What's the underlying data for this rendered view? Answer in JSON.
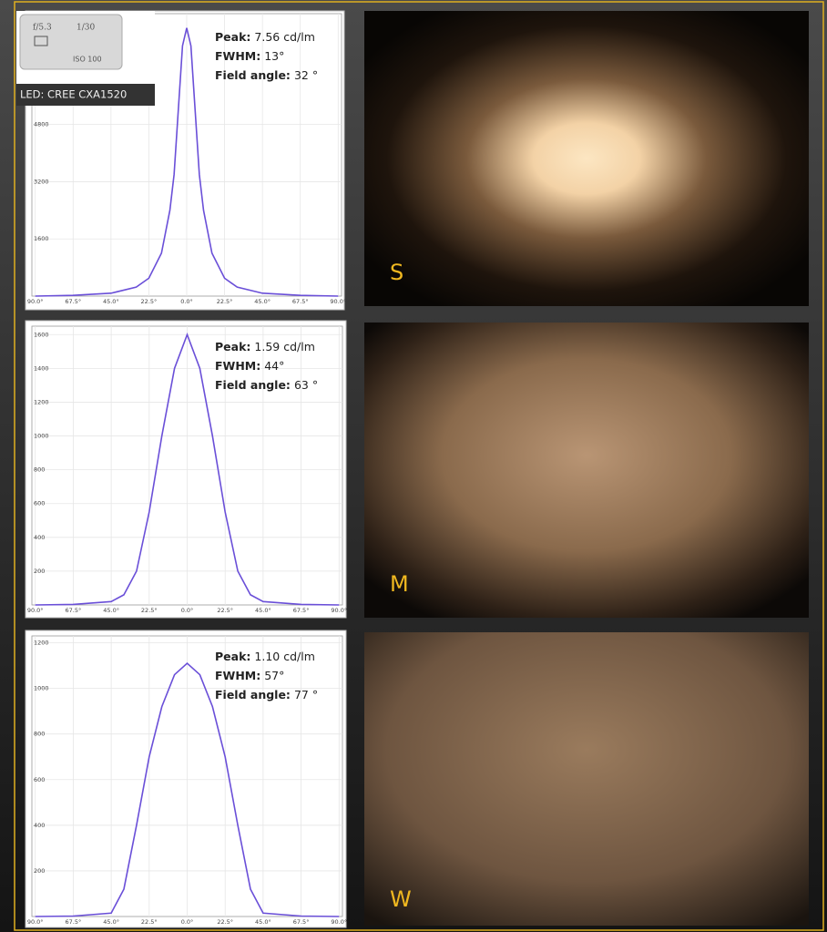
{
  "chart_data": [
    {
      "type": "line",
      "color": "#6a4fd8",
      "grid": true,
      "x": [
        -90,
        -67.5,
        -45,
        -30,
        -22.5,
        -15,
        -10,
        -7.5,
        -5,
        -2.5,
        0,
        2.5,
        5,
        7.5,
        10,
        15,
        22.5,
        30,
        45,
        67.5,
        90
      ],
      "values": [
        0,
        20,
        80,
        250,
        500,
        1200,
        2400,
        3400,
        5200,
        7000,
        7500,
        7000,
        5200,
        3400,
        2400,
        1200,
        500,
        250,
        80,
        20,
        0
      ],
      "xlim": [
        -92,
        92
      ],
      "ylim": [
        0,
        7900
      ],
      "xticks": [
        {
          "value": -90,
          "label": "90.0°"
        },
        {
          "value": -67.5,
          "label": "67.5°"
        },
        {
          "value": -45,
          "label": "45.0°"
        },
        {
          "value": -22.5,
          "label": "22.5°"
        },
        {
          "value": 0,
          "label": "0.0°"
        },
        {
          "value": 22.5,
          "label": "22.5°"
        },
        {
          "value": 45,
          "label": "45.0°"
        },
        {
          "value": 67.5,
          "label": "67.5°"
        },
        {
          "value": 90,
          "label": "90.0°"
        }
      ],
      "yticks": [
        1600,
        3200,
        4800
      ],
      "annotations": [
        {
          "label": "Peak:",
          "text": "7.56 cd/lm"
        },
        {
          "label": "FWHM:",
          "text": "13°"
        },
        {
          "label": "Field angle:",
          "text": "32 °"
        }
      ]
    },
    {
      "type": "line",
      "color": "#6a4fd8",
      "grid": true,
      "x": [
        -90,
        -67.5,
        -45,
        -37.5,
        -30,
        -22.5,
        -15,
        -7.5,
        0,
        7.5,
        15,
        22.5,
        30,
        37.5,
        45,
        67.5,
        90
      ],
      "values": [
        0,
        3,
        20,
        60,
        200,
        550,
        1000,
        1400,
        1600,
        1400,
        1000,
        550,
        200,
        60,
        20,
        3,
        0
      ],
      "xlim": [
        -92,
        92
      ],
      "ylim": [
        0,
        1650
      ],
      "xticks": [
        {
          "value": -90,
          "label": "90.0°"
        },
        {
          "value": -67.5,
          "label": "67.5°"
        },
        {
          "value": -45,
          "label": "45.0°"
        },
        {
          "value": -22.5,
          "label": "22.5°"
        },
        {
          "value": 0,
          "label": "0.0°"
        },
        {
          "value": 22.5,
          "label": "22.5°"
        },
        {
          "value": 45,
          "label": "45.0°"
        },
        {
          "value": 67.5,
          "label": "67.5°"
        },
        {
          "value": 90,
          "label": "90.0°"
        }
      ],
      "yticks": [
        200,
        400,
        600,
        800,
        1000,
        1200,
        1400,
        1600
      ],
      "annotations": [
        {
          "label": "Peak:",
          "text": "1.59 cd/lm"
        },
        {
          "label": "FWHM:",
          "text": "44°"
        },
        {
          "label": "Field angle:",
          "text": "63 °"
        }
      ]
    },
    {
      "type": "line",
      "color": "#6a4fd8",
      "grid": true,
      "x": [
        -90,
        -67.5,
        -45,
        -37.5,
        -30,
        -22.5,
        -15,
        -7.5,
        0,
        7.5,
        15,
        22.5,
        30,
        37.5,
        45,
        67.5,
        90
      ],
      "values": [
        0,
        2,
        15,
        120,
        400,
        700,
        920,
        1060,
        1110,
        1060,
        920,
        700,
        400,
        120,
        15,
        2,
        0
      ],
      "xlim": [
        -92,
        92
      ],
      "ylim": [
        0,
        1230
      ],
      "xticks": [
        {
          "value": -90,
          "label": "90.0°"
        },
        {
          "value": -67.5,
          "label": "67.5°"
        },
        {
          "value": -45,
          "label": "45.0°"
        },
        {
          "value": -22.5,
          "label": "22.5°"
        },
        {
          "value": 0,
          "label": "0.0°"
        },
        {
          "value": 22.5,
          "label": "22.5°"
        },
        {
          "value": 45,
          "label": "45.0°"
        },
        {
          "value": 67.5,
          "label": "67.5°"
        },
        {
          "value": 90,
          "label": "90.0°"
        }
      ],
      "yticks": [
        200,
        400,
        600,
        800,
        1000,
        1200
      ],
      "annotations": [
        {
          "label": "Peak:",
          "text": "1.10 cd/lm"
        },
        {
          "label": "FWHM:",
          "text": "57°"
        },
        {
          "label": "Field angle:",
          "text": "77 °"
        }
      ]
    }
  ],
  "overlay": {
    "camera": [
      "f/5.3",
      "1/30",
      "ISO 100"
    ],
    "caption": "LED: CREE CXA1520"
  },
  "photos": [
    {
      "label": "S"
    },
    {
      "label": "M"
    },
    {
      "label": "W"
    }
  ]
}
